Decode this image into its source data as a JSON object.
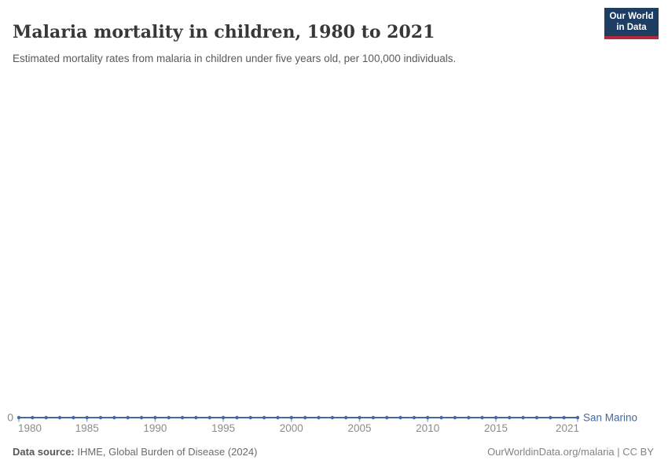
{
  "header": {
    "title": "Malaria mortality in children, 1980 to 2021",
    "subtitle": "Estimated mortality rates from malaria in children under five years old, per 100,000 individuals.",
    "logo": {
      "line1": "Our World",
      "line2": "in Data",
      "bg_color": "#1d3d63",
      "bar_color": "#b8283b"
    }
  },
  "footer": {
    "source_label": "Data source:",
    "source_value": " IHME, Global Burden of Disease (2024)",
    "attribution": "OurWorldinData.org/malaria | CC BY"
  },
  "chart_data": {
    "type": "line",
    "title": "Malaria mortality in children, 1980 to 2021",
    "xlabel": "",
    "ylabel": "",
    "x": [
      1980,
      1981,
      1982,
      1983,
      1984,
      1985,
      1986,
      1987,
      1988,
      1989,
      1990,
      1991,
      1992,
      1993,
      1994,
      1995,
      1996,
      1997,
      1998,
      1999,
      2000,
      2001,
      2002,
      2003,
      2004,
      2005,
      2006,
      2007,
      2008,
      2009,
      2010,
      2011,
      2012,
      2013,
      2014,
      2015,
      2016,
      2017,
      2018,
      2019,
      2020,
      2021
    ],
    "series": [
      {
        "name": "San Marino",
        "color": "#4568a2",
        "values": [
          0,
          0,
          0,
          0,
          0,
          0,
          0,
          0,
          0,
          0,
          0,
          0,
          0,
          0,
          0,
          0,
          0,
          0,
          0,
          0,
          0,
          0,
          0,
          0,
          0,
          0,
          0,
          0,
          0,
          0,
          0,
          0,
          0,
          0,
          0,
          0,
          0,
          0,
          0,
          0,
          0,
          0
        ]
      }
    ],
    "x_ticks": [
      1980,
      1985,
      1990,
      1995,
      2000,
      2005,
      2010,
      2015,
      2021
    ],
    "x_tick_labels": [
      "1980",
      "1985",
      "1990",
      "1995",
      "2000",
      "2005",
      "2010",
      "2015",
      "2021"
    ],
    "y_ticks": [
      0
    ],
    "ylim": [
      0,
      0
    ],
    "grid": false,
    "legend_position": "end-of-line-label",
    "marker": "point-per-year",
    "tick_color": "#9dabc6",
    "axis_text_color": "#8c8c8c"
  }
}
